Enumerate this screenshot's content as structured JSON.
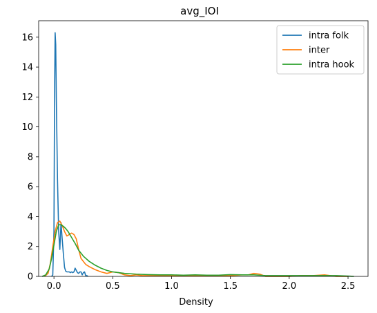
{
  "chart_data": {
    "type": "line",
    "title": "avg_IOI",
    "xlabel": "Density",
    "ylabel": "",
    "xlim": [
      -0.13,
      2.67
    ],
    "ylim": [
      0,
      17.1
    ],
    "xticks": [
      0.0,
      0.5,
      1.0,
      1.5,
      2.0,
      2.5
    ],
    "xtick_labels": [
      "0.0",
      "0.5",
      "1.0",
      "1.5",
      "2.0",
      "2.5"
    ],
    "yticks": [
      0,
      2,
      4,
      6,
      8,
      10,
      12,
      14,
      16
    ],
    "ytick_labels": [
      "0",
      "2",
      "4",
      "6",
      "8",
      "10",
      "12",
      "14",
      "16"
    ],
    "grid": false,
    "legend_position": "top-right",
    "series": [
      {
        "name": "intra folk",
        "color": "#1f77b4",
        "x": [
          -0.02,
          -0.01,
          0.0,
          0.005,
          0.01,
          0.015,
          0.02,
          0.03,
          0.04,
          0.05,
          0.06,
          0.07,
          0.08,
          0.09,
          0.1,
          0.11,
          0.12,
          0.13,
          0.14,
          0.15,
          0.16,
          0.17,
          0.18,
          0.19,
          0.2,
          0.21,
          0.22,
          0.23,
          0.24,
          0.25,
          0.26,
          0.27,
          0.28,
          0.29
        ],
        "y": [
          0.0,
          0.1,
          3.0,
          12.0,
          16.3,
          15.5,
          12.0,
          6.5,
          3.0,
          1.8,
          3.6,
          2.5,
          1.5,
          0.6,
          0.35,
          0.3,
          0.3,
          0.3,
          0.25,
          0.3,
          0.25,
          0.3,
          0.55,
          0.4,
          0.25,
          0.2,
          0.3,
          0.3,
          0.1,
          0.25,
          0.3,
          0.05,
          0.05,
          0.0
        ]
      },
      {
        "name": "inter",
        "color": "#ff7f0e",
        "x": [
          -0.08,
          -0.05,
          -0.03,
          -0.01,
          0.0,
          0.01,
          0.03,
          0.05,
          0.07,
          0.09,
          0.11,
          0.13,
          0.15,
          0.17,
          0.19,
          0.21,
          0.23,
          0.25,
          0.27,
          0.3,
          0.35,
          0.4,
          0.45,
          0.5,
          0.55,
          0.6,
          0.65,
          0.7,
          0.75,
          0.8,
          0.9,
          1.0,
          1.1,
          1.2,
          1.3,
          1.4,
          1.5,
          1.6,
          1.65,
          1.7,
          1.75,
          1.8,
          1.9,
          2.0,
          2.1,
          2.2,
          2.3,
          2.35,
          2.4,
          2.45,
          2.5
        ],
        "y": [
          0.0,
          0.2,
          0.9,
          2.0,
          2.5,
          3.0,
          3.6,
          3.7,
          3.4,
          3.0,
          2.7,
          2.8,
          2.9,
          2.8,
          2.5,
          1.8,
          1.2,
          1.0,
          0.8,
          0.65,
          0.45,
          0.3,
          0.2,
          0.3,
          0.25,
          0.1,
          0.05,
          0.1,
          0.05,
          0.05,
          0.05,
          0.05,
          0.05,
          0.05,
          0.05,
          0.05,
          0.05,
          0.1,
          0.1,
          0.2,
          0.15,
          0.0,
          0.0,
          0.0,
          0.05,
          0.05,
          0.1,
          0.05,
          0.0,
          0.0,
          0.0
        ]
      },
      {
        "name": "intra hook",
        "color": "#2ca02c",
        "x": [
          -0.1,
          -0.07,
          -0.04,
          -0.02,
          0.0,
          0.02,
          0.04,
          0.06,
          0.08,
          0.1,
          0.12,
          0.15,
          0.18,
          0.21,
          0.25,
          0.3,
          0.35,
          0.4,
          0.45,
          0.5,
          0.55,
          0.6,
          0.7,
          0.8,
          0.9,
          1.0,
          1.1,
          1.2,
          1.3,
          1.4,
          1.5,
          1.6,
          1.7,
          1.8,
          1.9,
          2.0,
          2.1,
          2.2,
          2.3,
          2.4,
          2.5,
          2.55
        ],
        "y": [
          0.0,
          0.1,
          0.5,
          1.2,
          2.1,
          3.0,
          3.45,
          3.45,
          3.35,
          3.2,
          3.0,
          2.6,
          2.2,
          1.75,
          1.35,
          1.0,
          0.75,
          0.55,
          0.4,
          0.3,
          0.25,
          0.2,
          0.15,
          0.12,
          0.1,
          0.1,
          0.08,
          0.1,
          0.08,
          0.08,
          0.12,
          0.1,
          0.1,
          0.05,
          0.05,
          0.05,
          0.05,
          0.05,
          0.05,
          0.05,
          0.02,
          0.0
        ]
      }
    ]
  }
}
